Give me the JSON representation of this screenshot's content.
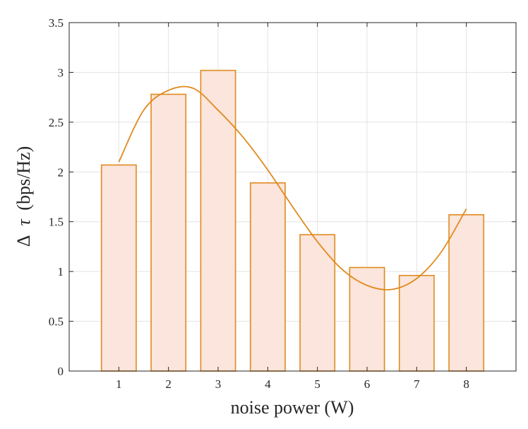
{
  "chart_data": {
    "type": "bar",
    "x": [
      1,
      2,
      3,
      4,
      5,
      6,
      7,
      8
    ],
    "values": [
      2.07,
      2.78,
      3.02,
      1.89,
      1.37,
      1.04,
      0.96,
      1.57
    ],
    "fit_curve": {
      "type": "line",
      "x": [
        1,
        1.5,
        2,
        2.5,
        3,
        3.5,
        4,
        4.5,
        5,
        5.5,
        6,
        6.5,
        7,
        7.5,
        8
      ],
      "y": [
        2.1,
        2.62,
        2.82,
        2.84,
        2.62,
        2.35,
        2.02,
        1.65,
        1.3,
        1.02,
        0.86,
        0.82,
        0.93,
        1.2,
        1.63
      ]
    },
    "xlabel": "noise power (W)",
    "ylabel": "Δ τ (bps/Hz)",
    "ylabel_parts": {
      "delta": "Δ",
      "tau": "τ",
      "unit": "(bps/Hz)"
    },
    "xlim": [
      0,
      9
    ],
    "ylim": [
      0,
      3.5
    ],
    "xticks": [
      "1",
      "2",
      "3",
      "4",
      "5",
      "6",
      "7",
      "8"
    ],
    "yticks": [
      "0",
      "0.5",
      "1",
      "1.5",
      "2",
      "2.5",
      "3",
      "3.5"
    ],
    "grid": true,
    "colors": {
      "bar_fill": "#fbe5dc",
      "bar_edge": "#e08a1e",
      "curve": "#e08a1e",
      "grid": "#e3e3e3",
      "axis": "#262626"
    }
  }
}
